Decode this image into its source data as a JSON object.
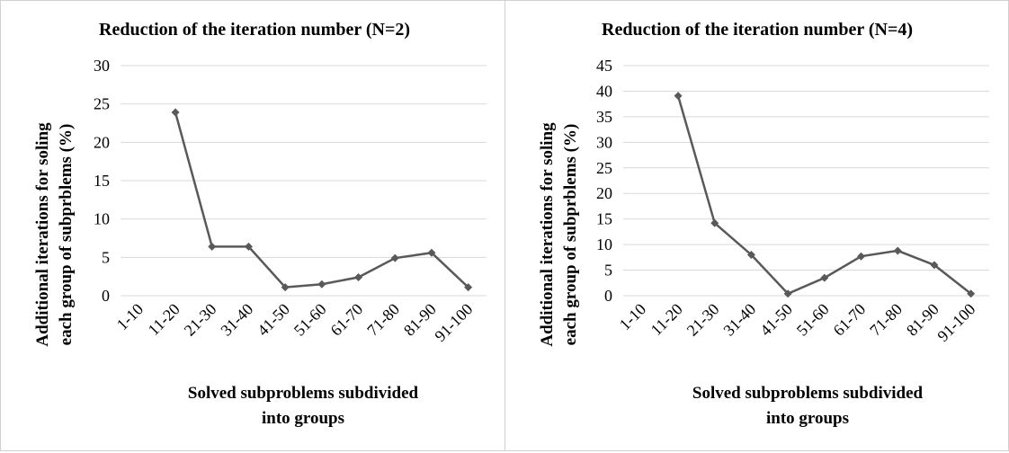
{
  "chart_data": [
    {
      "type": "line",
      "title": "Reduction of the iteration number (N=2)",
      "xlabel": [
        "Solved subproblems subdivided",
        "into groups"
      ],
      "ylabel": [
        "Additional iterations for soling",
        "each group of subprblems  (%)"
      ],
      "categories": [
        "1-10",
        "11-20",
        "21-30",
        "31-40",
        "41-50",
        "51-60",
        "61-70",
        "71-80",
        "81-90",
        "91-100"
      ],
      "series": [
        {
          "values": [
            null,
            23.9,
            6.4,
            6.4,
            1.1,
            1.5,
            2.4,
            4.9,
            5.6,
            1.1
          ]
        }
      ],
      "ylim": [
        0,
        30
      ],
      "yticks": [
        0,
        5,
        10,
        15,
        20,
        25,
        30
      ],
      "grid": true,
      "color": "#595959"
    },
    {
      "type": "line",
      "title": "Reduction of the iteration number (N=4)",
      "xlabel": [
        "Solved subproblems subdivided",
        "into groups"
      ],
      "ylabel": [
        "Additional iterations for soling",
        "each group of subprblems  (%)"
      ],
      "categories": [
        "1-10",
        "11-20",
        "21-30",
        "31-40",
        "41-50",
        "51-60",
        "61-70",
        "71-80",
        "81-90",
        "91-100"
      ],
      "series": [
        {
          "values": [
            null,
            39.1,
            14.2,
            8.0,
            0.4,
            3.5,
            7.7,
            8.8,
            6.0,
            0.4
          ]
        }
      ],
      "ylim": [
        0,
        45
      ],
      "yticks": [
        0,
        5,
        10,
        15,
        20,
        25,
        30,
        35,
        40,
        45
      ],
      "grid": true,
      "color": "#595959"
    }
  ]
}
